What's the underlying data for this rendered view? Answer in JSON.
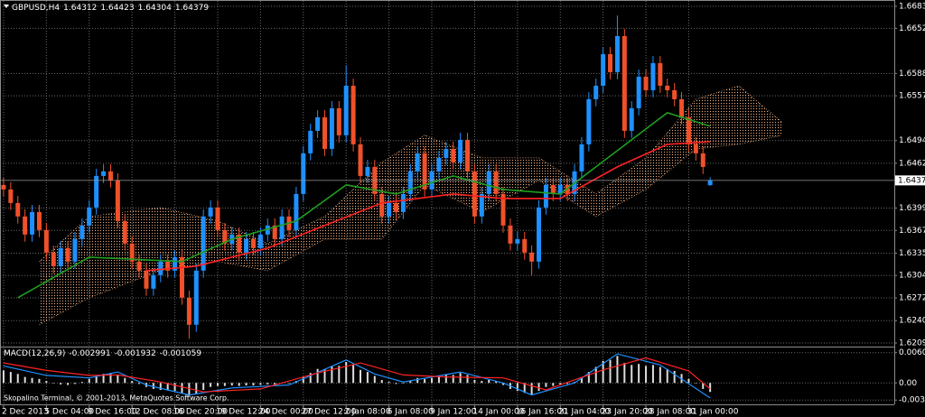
{
  "chart_data": [
    {
      "type": "candlestick",
      "symbol": "GBPUSD,H4",
      "up_color": "#1e90ff",
      "down_color": "#f0502a",
      "grid": true,
      "ylim": [
        1.62052,
        1.66906
      ],
      "yticks": [
        {
          "value": 1.6683,
          "label": "1.66830"
        },
        {
          "value": 1.6652,
          "label": "1.66520"
        },
        1.65885,
        {
          "value": 1.6557,
          "label": "1.65570"
        },
        {
          "value": 1.6494,
          "label": "1.64940"
        },
        {
          "value": 1.6462,
          "label": "1.64620"
        },
        {
          "value": 1.6399,
          "label": "1.63990"
        },
        1.63675,
        1.63355,
        {
          "value": 1.6304,
          "label": "1.63040"
        },
        1.62725,
        1.62405,
        {
          "value": 1.6209,
          "label": "1.62090"
        }
      ],
      "xlim": [
        -0.5,
        124.8
      ],
      "xticks": [
        {
          "value": 0,
          "label": "2 Dec 2013"
        },
        {
          "value": 6,
          "label": "5 Dec 04:00"
        },
        {
          "value": 12,
          "label": "9 Dec 16:00"
        },
        {
          "value": 18,
          "label": "12 Dec 08:00"
        },
        {
          "value": 24,
          "label": "16 Dec 20:00"
        },
        {
          "value": 30,
          "label": "19 Dec 12:00"
        },
        {
          "value": 36,
          "label": "24 Dec 00:00"
        },
        {
          "value": 42,
          "label": "27 Dec 12:00"
        },
        {
          "value": 48,
          "label": "2 Jan 08:00"
        },
        {
          "value": 54,
          "label": "6 Jan 08:00"
        },
        {
          "value": 60,
          "label": "9 Jan 12:00"
        },
        {
          "value": 66,
          "label": "14 Jan 00:00"
        },
        {
          "value": 72,
          "label": "16 Jan 16:00"
        },
        {
          "value": 78,
          "label": "21 Jan 04:00"
        },
        {
          "value": 84,
          "label": "23 Jan 20:00"
        },
        {
          "value": 90,
          "label": "28 Jan 08:00"
        },
        {
          "value": 96,
          "label": "31 Jan 00:00"
        }
      ],
      "ohlc": [
        [
          1.64315,
          1.64415,
          1.64152,
          1.64252
        ],
        [
          1.64252,
          1.64352,
          1.63961,
          1.64061
        ],
        [
          1.64061,
          1.64161,
          1.63771,
          1.63871
        ],
        [
          1.63871,
          1.63971,
          1.63517,
          1.63617
        ],
        [
          1.63617,
          1.64034,
          1.63517,
          1.63934
        ],
        [
          1.63934,
          1.64034,
          1.6358,
          1.6368
        ],
        [
          1.6368,
          1.6378,
          1.63263,
          1.63363
        ],
        [
          1.63363,
          1.63463,
          1.63072,
          1.63172
        ],
        [
          1.63172,
          1.63526,
          1.63072,
          1.63426
        ],
        [
          1.63426,
          1.63526,
          1.63136,
          1.63236
        ],
        [
          1.63236,
          1.63653,
          1.63136,
          1.63553
        ],
        [
          1.63553,
          1.63844,
          1.63453,
          1.63744
        ],
        [
          1.63744,
          1.64098,
          1.63644,
          1.63998
        ],
        [
          1.63998,
          1.64542,
          1.63898,
          1.64442
        ],
        [
          1.64442,
          1.64606,
          1.64342,
          1.64506
        ],
        [
          1.64506,
          1.64606,
          1.64279,
          1.64379
        ],
        [
          1.64379,
          1.64479,
          1.63707,
          1.63807
        ],
        [
          1.63807,
          1.63907,
          1.6339,
          1.6349
        ],
        [
          1.6349,
          1.6359,
          1.63136,
          1.63236
        ],
        [
          1.63236,
          1.63336,
          1.63009,
          1.63109
        ],
        [
          1.63109,
          1.63209,
          1.62755,
          1.62855
        ],
        [
          1.62855,
          1.63145,
          1.62755,
          1.63045
        ],
        [
          1.63045,
          1.63336,
          1.62945,
          1.63236
        ],
        [
          1.63236,
          1.63336,
          1.63009,
          1.63109
        ],
        [
          1.63109,
          1.63399,
          1.63009,
          1.63299
        ],
        [
          1.63299,
          1.63399,
          1.62628,
          1.62728
        ],
        [
          1.62728,
          1.62828,
          1.6215,
          1.62347
        ],
        [
          1.62347,
          1.63209,
          1.62247,
          1.63109
        ],
        [
          1.63109,
          1.63971,
          1.63009,
          1.63871
        ],
        [
          1.63871,
          1.64098,
          1.63771,
          1.63998
        ],
        [
          1.63998,
          1.64098,
          1.6358,
          1.6368
        ],
        [
          1.6368,
          1.6378,
          1.6339,
          1.6349
        ],
        [
          1.6349,
          1.63717,
          1.6339,
          1.63617
        ],
        [
          1.63617,
          1.63717,
          1.63263,
          1.63363
        ],
        [
          1.63363,
          1.63653,
          1.63263,
          1.63553
        ],
        [
          1.63553,
          1.63653,
          1.63326,
          1.63426
        ],
        [
          1.63426,
          1.63717,
          1.63326,
          1.63617
        ],
        [
          1.63617,
          1.63844,
          1.63517,
          1.63744
        ],
        [
          1.63744,
          1.63844,
          1.63453,
          1.63553
        ],
        [
          1.63553,
          1.63971,
          1.63453,
          1.63871
        ],
        [
          1.63871,
          1.63971,
          1.6358,
          1.6368
        ],
        [
          1.6368,
          1.64288,
          1.6358,
          1.64188
        ],
        [
          1.64188,
          1.6486,
          1.64088,
          1.6476
        ],
        [
          1.6476,
          1.65177,
          1.6466,
          1.65077
        ],
        [
          1.65077,
          1.65368,
          1.64977,
          1.65268
        ],
        [
          1.65268,
          1.65368,
          1.64723,
          1.64823
        ],
        [
          1.64823,
          1.65495,
          1.64723,
          1.65395
        ],
        [
          1.65395,
          1.65495,
          1.64914,
          1.65014
        ],
        [
          1.65014,
          1.66,
          1.64914,
          1.65712
        ],
        [
          1.65712,
          1.65812,
          1.64787,
          1.64887
        ],
        [
          1.64887,
          1.64987,
          1.64342,
          1.64442
        ],
        [
          1.64442,
          1.64669,
          1.64342,
          1.64569
        ],
        [
          1.64569,
          1.64669,
          1.64088,
          1.64188
        ],
        [
          1.64188,
          1.64288,
          1.63771,
          1.63871
        ],
        [
          1.63871,
          1.64161,
          1.63771,
          1.64061
        ],
        [
          1.64061,
          1.64161,
          1.63834,
          1.63934
        ],
        [
          1.63934,
          1.64288,
          1.63834,
          1.64188
        ],
        [
          1.64188,
          1.64606,
          1.64088,
          1.64506
        ],
        [
          1.64506,
          1.6486,
          1.64406,
          1.6476
        ],
        [
          1.6476,
          1.6486,
          1.64152,
          1.64252
        ],
        [
          1.64252,
          1.64606,
          1.64152,
          1.64506
        ],
        [
          1.64506,
          1.64796,
          1.64406,
          1.64696
        ],
        [
          1.64696,
          1.64923,
          1.64596,
          1.64823
        ],
        [
          1.64823,
          1.64923,
          1.64533,
          1.64633
        ],
        [
          1.64633,
          1.6505,
          1.64533,
          1.6495
        ],
        [
          1.6495,
          1.6505,
          1.64406,
          1.64506
        ],
        [
          1.64506,
          1.64606,
          1.63771,
          1.63871
        ],
        [
          1.63871,
          1.64288,
          1.63771,
          1.64188
        ],
        [
          1.64188,
          1.64606,
          1.64088,
          1.64506
        ],
        [
          1.64506,
          1.64606,
          1.64088,
          1.64188
        ],
        [
          1.64188,
          1.64288,
          1.63644,
          1.63744
        ],
        [
          1.63744,
          1.63844,
          1.6339,
          1.6349
        ],
        [
          1.6349,
          1.63653,
          1.6339,
          1.63553
        ],
        [
          1.63553,
          1.63653,
          1.63263,
          1.63363
        ],
        [
          1.63363,
          1.63463,
          1.6304,
          1.63236
        ],
        [
          1.63236,
          1.64098,
          1.63136,
          1.63998
        ],
        [
          1.63998,
          1.64415,
          1.63898,
          1.64315
        ],
        [
          1.64315,
          1.64415,
          1.64088,
          1.64188
        ],
        [
          1.64188,
          1.64415,
          1.64088,
          1.64315
        ],
        [
          1.64315,
          1.64415,
          1.64088,
          1.64188
        ],
        [
          1.64188,
          1.64606,
          1.64088,
          1.64506
        ],
        [
          1.64506,
          1.64987,
          1.64406,
          1.64887
        ],
        [
          1.64887,
          1.65622,
          1.64787,
          1.65522
        ],
        [
          1.65522,
          1.65812,
          1.65422,
          1.65712
        ],
        [
          1.65712,
          1.66257,
          1.65612,
          1.66157
        ],
        [
          1.66157,
          1.66257,
          1.65803,
          1.65903
        ],
        [
          1.65903,
          1.667,
          1.65803,
          1.66411
        ],
        [
          1.66411,
          1.66511,
          1.64977,
          1.65077
        ],
        [
          1.65077,
          1.65495,
          1.64977,
          1.65395
        ],
        [
          1.65395,
          1.65939,
          1.65295,
          1.65839
        ],
        [
          1.65839,
          1.65939,
          1.65549,
          1.65649
        ],
        [
          1.65649,
          1.6613,
          1.65549,
          1.6603
        ],
        [
          1.6603,
          1.6613,
          1.65612,
          1.65712
        ],
        [
          1.65712,
          1.65812,
          1.65549,
          1.65649
        ],
        [
          1.65649,
          1.65749,
          1.65422,
          1.65522
        ],
        [
          1.65522,
          1.65622,
          1.65168,
          1.65268
        ],
        [
          1.65268,
          1.65368,
          1.64787,
          1.64887
        ],
        [
          1.64887,
          1.64987,
          1.6466,
          1.6476
        ],
        [
          1.6476,
          1.6486,
          1.64469,
          1.64569
        ],
        [
          1.64312,
          1.64423,
          1.64304,
          1.64379
        ]
      ],
      "cloud": {
        "color": "#f4b183",
        "x": [
          5,
          12,
          22,
          30,
          37,
          45,
          53,
          59,
          67,
          75,
          83,
          90,
          97,
          103,
          109
        ],
        "upper": [
          1.63236,
          1.63871,
          1.63998,
          1.63807,
          1.6349,
          1.63871,
          1.64633,
          1.65014,
          1.64696,
          1.64696,
          1.64188,
          1.64696,
          1.65522,
          1.65712,
          1.65204
        ],
        "lower": [
          1.62347,
          1.62728,
          1.63109,
          1.63236,
          1.63109,
          1.63553,
          1.63553,
          1.64315,
          1.63934,
          1.64379,
          1.63871,
          1.64252,
          1.64823,
          1.64887,
          1.65014
        ]
      },
      "lines": [
        {
          "color": "#1f9e1f",
          "x": [
            2,
            12,
            25,
            32,
            41,
            48,
            55,
            63,
            70,
            78,
            83,
            88,
            93,
            97,
            99
          ],
          "values": [
            1.62728,
            1.63299,
            1.63236,
            1.63553,
            1.63807,
            1.64315,
            1.64188,
            1.64442,
            1.64252,
            1.64188,
            1.64569,
            1.6495,
            1.65331,
            1.65204,
            1.65141
          ]
        },
        {
          "color": "#ff2222",
          "x": [
            20,
            27,
            37,
            45,
            53,
            63,
            70,
            78,
            86,
            93,
            99
          ],
          "values": [
            1.63109,
            1.63172,
            1.63426,
            1.63744,
            1.64061,
            1.64188,
            1.64125,
            1.64125,
            1.64569,
            1.64887,
            1.64925
          ]
        }
      ]
    },
    {
      "type": "macd",
      "label": "MACD(12,26,9)",
      "readout": [
        -0.002991,
        -0.001932,
        -0.001059
      ],
      "ylim": [
        -0.0041,
        0.0069
      ],
      "yticks": [
        0.006047,
        {
          "value": 0,
          "label": "0.00"
        },
        -0.003421
      ],
      "hist_color": "#dcdcdc",
      "histogram": [
        0.0025,
        0.0022,
        0.0018,
        0.0012,
        0.001,
        0.0008,
        0.0004,
        0,
        -0.0003,
        -0.0004,
        -0.0002,
        0.0002,
        0.0008,
        0.0014,
        0.0018,
        0.002,
        0.0016,
        0.001,
        0.0004,
        -0.0002,
        -0.0008,
        -0.0012,
        -0.0014,
        -0.0015,
        -0.0016,
        -0.002,
        -0.0026,
        -0.0022,
        -0.0014,
        -0.0008,
        -0.0006,
        -0.0006,
        -0.0005,
        -0.0006,
        -0.0005,
        -0.0005,
        -0.0004,
        -0.0003,
        -0.0003,
        -0.0001,
        -0.0001,
        0.0004,
        0.0012,
        0.002,
        0.0028,
        0.0028,
        0.0034,
        0.0034,
        0.0042,
        0.0036,
        0.0026,
        0.0022,
        0.0014,
        0.0006,
        0.0002,
        -0.0002,
        -0.0001,
        0.0004,
        0.001,
        0.0008,
        0.001,
        0.0014,
        0.0016,
        0.0016,
        0.002,
        0.0016,
        0.0006,
        0.0004,
        0.0006,
        0.0004,
        -0.0004,
        -0.0012,
        -0.0016,
        -0.002,
        -0.0024,
        -0.0016,
        -0.0008,
        -0.0006,
        -0.0003,
        -0.0002,
        0.0002,
        0.001,
        0.0022,
        0.0032,
        0.0044,
        0.0046,
        0.0054,
        0.004,
        0.0036,
        0.0038,
        0.0034,
        0.0036,
        0.0032,
        0.0028,
        0.0024,
        0.0018,
        0.0008,
        0,
        -0.0012,
        -0.0018
      ],
      "lines": [
        {
          "color": "#1e90ff",
          "x": [
            0,
            6,
            12,
            16,
            20,
            26,
            32,
            40,
            48,
            52,
            56,
            64,
            70,
            74,
            80,
            86,
            92,
            99
          ],
          "values": [
            0.0034,
            0.0015,
            0.001,
            0.0022,
            -0.0004,
            -0.0024,
            -0.001,
            -0.0004,
            0.0046,
            0.0018,
            0.0002,
            0.0022,
            0,
            -0.0024,
            0,
            0.0058,
            0.0036,
            -0.003
          ]
        },
        {
          "color": "#ff2222",
          "x": [
            0,
            6,
            12,
            16,
            22,
            28,
            36,
            44,
            50,
            56,
            62,
            70,
            76,
            84,
            90,
            96,
            99
          ],
          "values": [
            0.004,
            0.0025,
            0.0015,
            0.0016,
            0.0002,
            -0.0018,
            -0.0012,
            0.002,
            0.004,
            0.0016,
            0.0012,
            0.001,
            -0.0014,
            0.0026,
            0.005,
            0.0024,
            -0.0012
          ]
        }
      ]
    }
  ],
  "footer": "Skopalino Terminal, © 2001-2013, MetaQuotes Software Corp."
}
